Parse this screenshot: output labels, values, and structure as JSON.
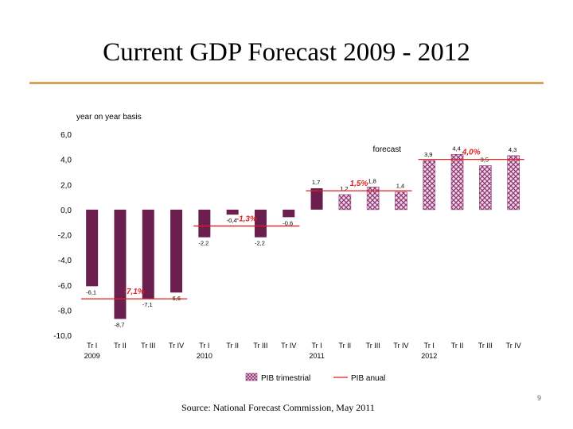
{
  "slide": {
    "title": "Current GDP Forecast 2009 - 2012",
    "source": "Source: National Forecast Commission, May 2011",
    "page_number": "9"
  },
  "colors": {
    "rule": "#d9a25c",
    "bar_actual": "#6b1f4f",
    "bar_forecast_fill": "#f4d7ea",
    "bar_forecast_pattern": "#8b3a70",
    "annual_line": "#e02020",
    "annual_label": "#e02020",
    "axis_text": "#000000"
  },
  "chart_data": {
    "type": "bar",
    "ylabel": "year on year basis",
    "ylim": [
      -10,
      6
    ],
    "yticks": [
      "6,0",
      "4,0",
      "2,0",
      "0,0",
      "-2,0",
      "-4,0",
      "-6,0",
      "-8,0",
      "-10,0"
    ],
    "ytick_values": [
      6,
      4,
      2,
      0,
      -2,
      -4,
      -6,
      -8,
      -10
    ],
    "categories": [
      "Tr I",
      "Tr II",
      "Tr III",
      "Tr IV",
      "Tr I",
      "Tr II",
      "Tr III",
      "Tr IV",
      "Tr I",
      "Tr II",
      "Tr III",
      "Tr IV",
      "Tr I",
      "Tr II",
      "Tr III",
      "Tr IV"
    ],
    "years": [
      {
        "label": "2009",
        "index": 0
      },
      {
        "label": "2010",
        "index": 4
      },
      {
        "label": "2011",
        "index": 8
      },
      {
        "label": "2012",
        "index": 12
      }
    ],
    "series": [
      {
        "name": "PIB trimestrial",
        "values": [
          -6.1,
          -8.7,
          -7.1,
          -6.6,
          -2.2,
          -0.4,
          -2.2,
          -0.6,
          1.7,
          1.2,
          1.8,
          1.4,
          3.9,
          4.4,
          3.5,
          4.3
        ],
        "labels": [
          "-6,1",
          "-8,7",
          "-7,1",
          "-6,6",
          "-2,2",
          "-0,4",
          "-2,2",
          "-0,6",
          "1,7",
          "1,2",
          "1,8",
          "1,4",
          "3,9",
          "4,4",
          "3,5",
          "4,3"
        ],
        "forecast_from_index": 9
      },
      {
        "name": "PIB anual",
        "segments": [
          {
            "start": 0,
            "end": 3,
            "value": -7.1,
            "label": "-7,1%"
          },
          {
            "start": 4,
            "end": 7,
            "value": -1.3,
            "label": "-1,3%"
          },
          {
            "start": 8,
            "end": 11,
            "value": 1.5,
            "label": "1,5%"
          },
          {
            "start": 12,
            "end": 15,
            "value": 4.0,
            "label": "4,0%"
          }
        ]
      }
    ],
    "annotations": [
      {
        "text": "forecast",
        "x_index": 10.5,
        "y": 4.6
      }
    ],
    "legend": {
      "placement": "bottom",
      "items": [
        "PIB trimestrial",
        "PIB anual"
      ]
    }
  }
}
